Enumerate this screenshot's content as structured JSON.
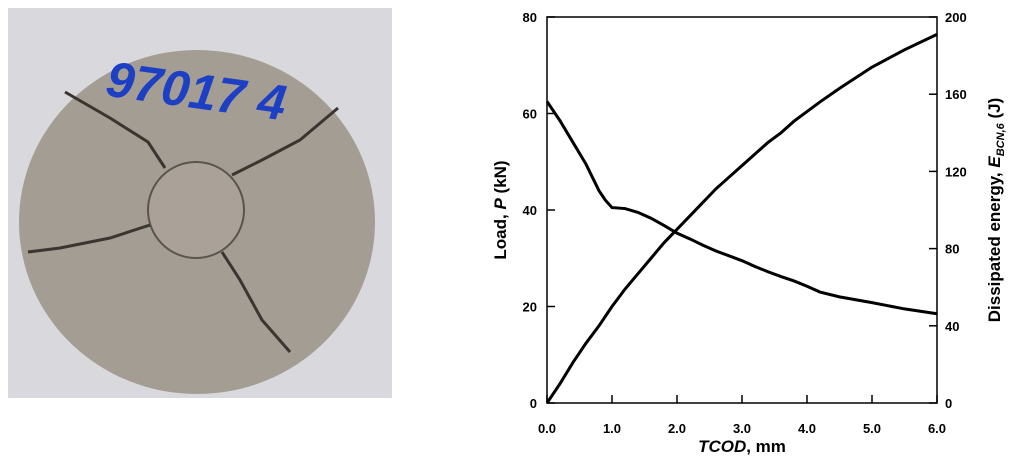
{
  "photo": {
    "label": "97017 4"
  },
  "chart_data": {
    "type": "line",
    "xlabel": [
      "TCOD",
      ", mm"
    ],
    "ylabel": [
      "Load, ",
      "P",
      " (kN)"
    ],
    "y2label": [
      "Dissipated energy, ",
      "E",
      "BCN,6",
      " (J)"
    ],
    "x": [
      0,
      0.2,
      0.4,
      0.6,
      0.8,
      0.9,
      1.0,
      1.2,
      1.4,
      1.6,
      1.8,
      2.0,
      2.2,
      2.4,
      2.6,
      2.8,
      3.0,
      3.2,
      3.4,
      3.6,
      3.8,
      4.0,
      4.2,
      4.5,
      5.0,
      5.5,
      6.0
    ],
    "series": [
      {
        "color": "#000000",
        "values": [
          62.5,
          58.5,
          54,
          49.5,
          44,
          42,
          40.5,
          40.3,
          39.5,
          38.3,
          36.8,
          35.2,
          34,
          32.7,
          31.5,
          30.5,
          29.5,
          28.3,
          27.2,
          26.2,
          25.3,
          24.2,
          23,
          22,
          20.8,
          19.5,
          18.5
        ]
      },
      {
        "color": "#000000",
        "axis": "y2",
        "values": [
          0,
          10,
          21,
          31,
          40,
          45,
          50,
          59,
          67,
          75,
          83,
          90,
          97,
          104,
          111,
          117,
          123,
          129,
          135,
          140,
          146,
          151,
          156,
          163,
          174,
          183,
          191
        ]
      }
    ],
    "xlim": [
      0,
      6
    ],
    "xticks": [
      {
        "value": 0,
        "label": "0.0"
      },
      {
        "value": 1,
        "label": "1.0"
      },
      {
        "value": 2,
        "label": "2.0"
      },
      {
        "value": 3,
        "label": "3.0"
      },
      {
        "value": 4,
        "label": "4.0"
      },
      {
        "value": 5,
        "label": "5.0"
      },
      {
        "value": 6,
        "label": "6.0"
      }
    ],
    "ylim": [
      0,
      80
    ],
    "yticks": [
      0,
      20,
      40,
      60,
      80
    ],
    "y2lim": [
      0,
      200
    ],
    "y2ticks": [
      0,
      40,
      80,
      120,
      160,
      200
    ]
  }
}
